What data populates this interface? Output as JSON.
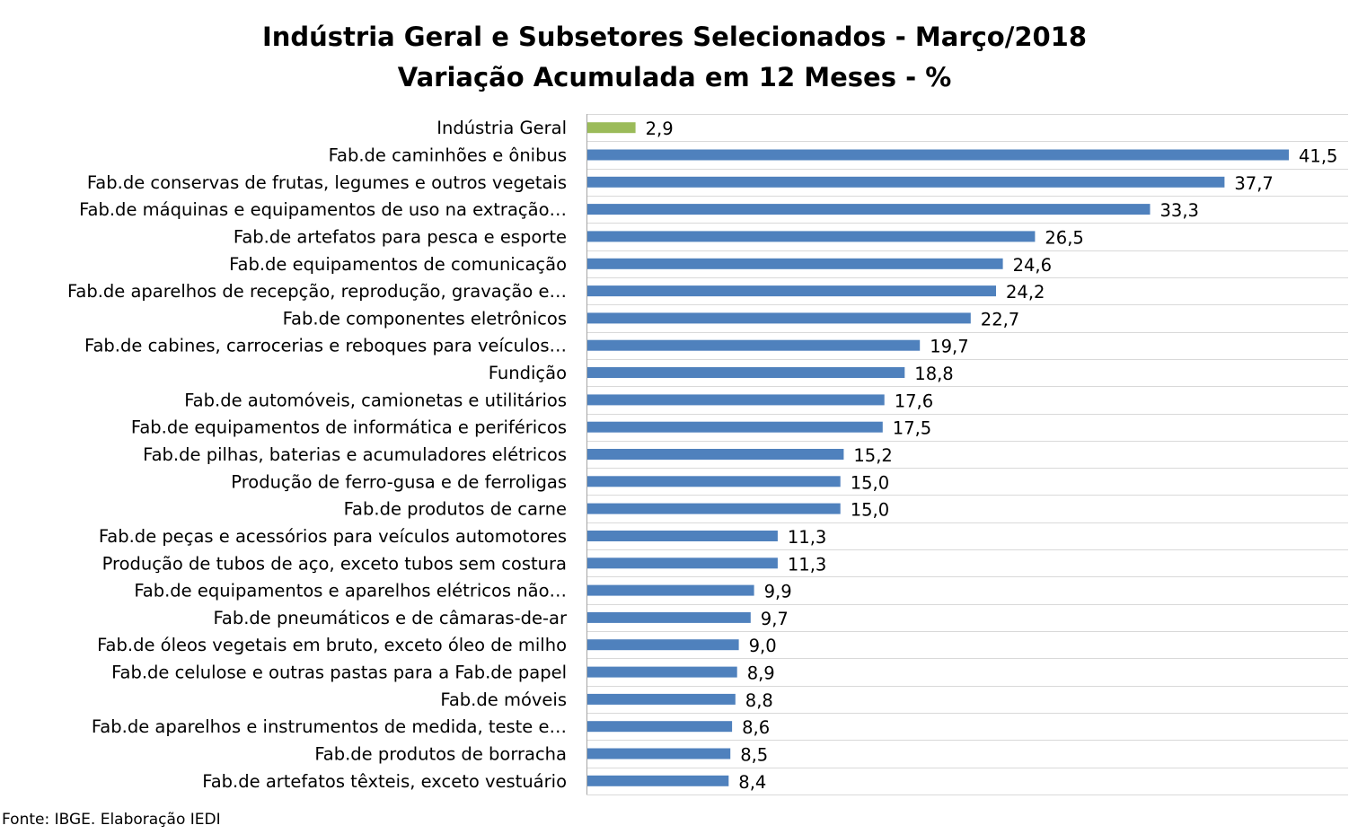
{
  "chart_data": {
    "type": "bar",
    "orientation": "horizontal",
    "title": "Indústria Geral e Subsetores Selecionados - Março/2018",
    "subtitle": "Variação Acumulada em 12 Meses - %",
    "source": "Fonte: IBGE. Elaboração IEDI",
    "xlim": [
      0,
      45
    ],
    "grid": "horizontal-category-lines",
    "colors": {
      "highlight": "#9bbb59",
      "default": "#4f81bd"
    },
    "categories": [
      "Indústria Geral",
      "Fab.de caminhões e ônibus",
      "Fab.de conservas de frutas, legumes e outros vegetais",
      "Fab.de máquinas e equipamentos de uso na extração…",
      "Fab.de artefatos para pesca e esporte",
      "Fab.de equipamentos de comunicação",
      "Fab.de aparelhos de recepção, reprodução, gravação e…",
      "Fab.de componentes eletrônicos",
      "Fab.de cabines, carrocerias e reboques para veículos…",
      "Fundição",
      "Fab.de automóveis, camionetas e utilitários",
      "Fab.de equipamentos de informática e periféricos",
      "Fab.de pilhas, baterias e acumuladores elétricos",
      "Produção de ferro-gusa e de ferroligas",
      "Fab.de produtos de carne",
      "Fab.de peças e acessórios para veículos automotores",
      "Produção de tubos de aço, exceto tubos sem costura",
      "Fab.de equipamentos e aparelhos elétricos não…",
      "Fab.de pneumáticos e de câmaras-de-ar",
      "Fab.de óleos vegetais em bruto, exceto óleo de milho",
      "Fab.de celulose e outras pastas para a Fab.de papel",
      "Fab.de móveis",
      "Fab.de aparelhos e instrumentos de medida, teste e…",
      "Fab.de produtos de borracha",
      "Fab.de artefatos têxteis, exceto vestuário"
    ],
    "values": [
      2.9,
      41.5,
      37.7,
      33.3,
      26.5,
      24.6,
      24.2,
      22.7,
      19.7,
      18.8,
      17.6,
      17.5,
      15.2,
      15.0,
      15.0,
      11.3,
      11.3,
      9.9,
      9.7,
      9.0,
      8.9,
      8.8,
      8.6,
      8.5,
      8.4
    ],
    "value_labels": [
      "2,9",
      "41,5",
      "37,7",
      "33,3",
      "26,5",
      "24,6",
      "24,2",
      "22,7",
      "19,7",
      "18,8",
      "17,6",
      "17,5",
      "15,2",
      "15,0",
      "15,0",
      "11,3",
      "11,3",
      "9,9",
      "9,7",
      "9,0",
      "8,9",
      "8,8",
      "8,6",
      "8,5",
      "8,4"
    ],
    "highlight_index": 0
  }
}
